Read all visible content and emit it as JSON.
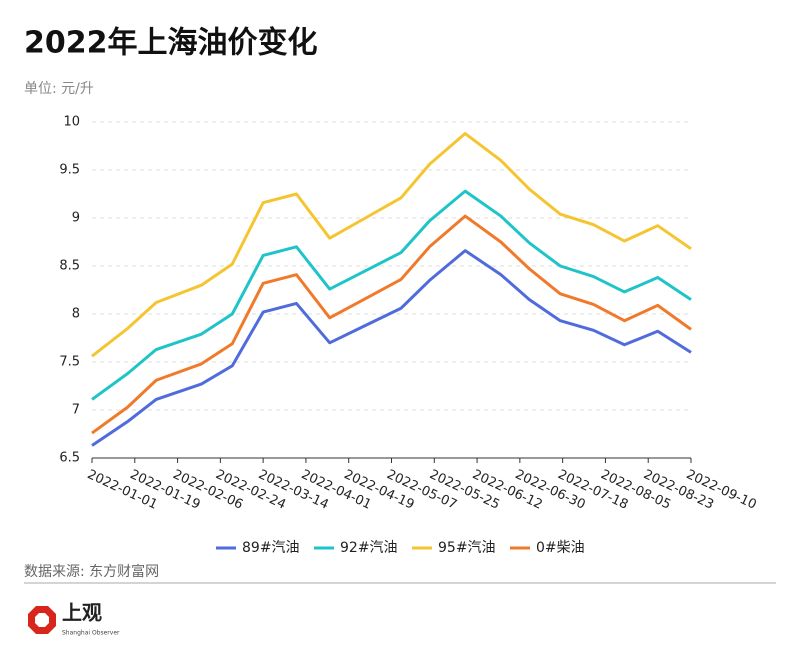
{
  "chart_data": {
    "type": "line",
    "title": "2022年上海油价变化",
    "subtitle": "单位: 元/升",
    "source": "数据来源: 东方财富网",
    "x": [
      "2022-01-01",
      "2022-01-16",
      "2022-01-28",
      "2022-02-16",
      "2022-03-01",
      "2022-03-14",
      "2022-03-28",
      "2022-04-11",
      "2022-04-26",
      "2022-05-11",
      "2022-05-23",
      "2022-06-07",
      "2022-06-22",
      "2022-07-04",
      "2022-07-17",
      "2022-07-31",
      "2022-08-13",
      "2022-08-27",
      "2022-09-10"
    ],
    "series": [
      {
        "name": "89#汽油",
        "color": "#4f6bdc",
        "values": [
          6.63,
          6.88,
          7.11,
          7.27,
          7.46,
          8.02,
          8.11,
          7.7,
          7.88,
          8.06,
          8.35,
          8.66,
          8.41,
          8.15,
          7.93,
          7.83,
          7.68,
          7.82,
          7.6
        ]
      },
      {
        "name": "92#汽油",
        "color": "#1fc4c8",
        "values": [
          7.11,
          7.38,
          7.63,
          7.79,
          8.0,
          8.61,
          8.7,
          8.26,
          8.45,
          8.64,
          8.97,
          9.28,
          9.02,
          8.74,
          8.5,
          8.39,
          8.23,
          8.38,
          8.15
        ]
      },
      {
        "name": "95#汽油",
        "color": "#f5c531",
        "values": [
          7.56,
          7.85,
          8.12,
          8.3,
          8.52,
          9.16,
          9.25,
          8.79,
          9.0,
          9.21,
          9.56,
          9.88,
          9.6,
          9.3,
          9.04,
          8.93,
          8.76,
          8.92,
          8.68
        ]
      },
      {
        "name": "0#柴油",
        "color": "#f07a2a",
        "values": [
          6.76,
          7.03,
          7.31,
          7.48,
          7.69,
          8.32,
          8.41,
          7.96,
          8.16,
          8.36,
          8.7,
          9.02,
          8.75,
          8.47,
          8.21,
          8.1,
          7.93,
          8.09,
          7.84
        ]
      }
    ],
    "xlim": [
      "2022-01-01",
      "2022-09-10"
    ],
    "xticks": [
      "2022-01-01",
      "2022-01-19",
      "2022-02-06",
      "2022-02-24",
      "2022-03-14",
      "2022-04-01",
      "2022-04-19",
      "2022-05-07",
      "2022-05-25",
      "2022-06-12",
      "2022-06-30",
      "2022-07-18",
      "2022-08-05",
      "2022-08-23",
      "2022-09-10"
    ],
    "ylim": [
      6.5,
      10
    ],
    "yticks": [
      6.5,
      7,
      7.5,
      8,
      8.5,
      9,
      9.5,
      10
    ],
    "grid": true,
    "legend": "bottom"
  },
  "logo": {
    "name": "上观",
    "english": "Shanghai Observer"
  }
}
